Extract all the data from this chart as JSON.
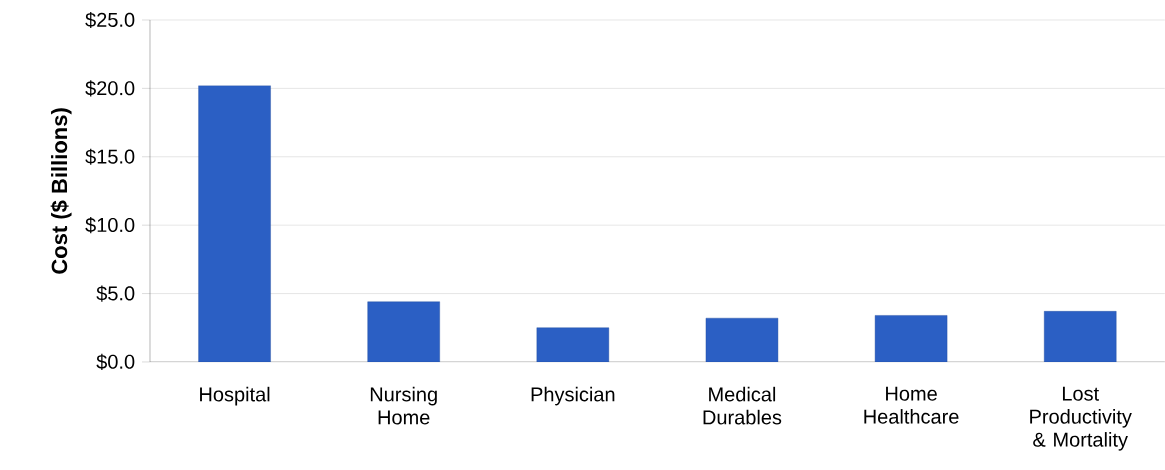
{
  "chart_data": {
    "type": "bar",
    "ylabel": "Cost ($ Billions)",
    "categories": [
      "Hospital",
      "Nursing Home",
      "Physician",
      "Medical Durables",
      "Home Healthcare",
      "Lost Productivity & Mortality"
    ],
    "values": [
      20.2,
      4.4,
      2.5,
      3.2,
      3.4,
      3.7
    ],
    "color": "#2b5fc4",
    "ylim": [
      0,
      25
    ],
    "yticks": [
      {
        "value": 0,
        "label": "$0.0"
      },
      {
        "value": 5,
        "label": "$5.0"
      },
      {
        "value": 10,
        "label": "$10.0"
      },
      {
        "value": 15,
        "label": "$15.0"
      },
      {
        "value": 20,
        "label": "$20.0"
      },
      {
        "value": 25,
        "label": "$25.0"
      }
    ],
    "grid": "y"
  }
}
